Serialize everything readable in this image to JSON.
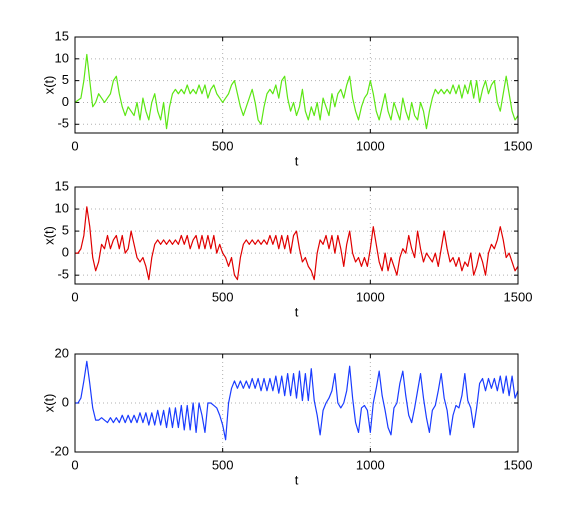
{
  "chart_data": [
    {
      "type": "line",
      "xlabel": "t",
      "ylabel": "x(t)",
      "xlim": [
        0,
        1500
      ],
      "ylim": [
        -7,
        15
      ],
      "xticks": [
        0,
        500,
        1000,
        1500
      ],
      "yticks": [
        -5,
        0,
        5,
        10,
        15
      ],
      "grid": true,
      "x": [
        0,
        10,
        20,
        30,
        40,
        50,
        60,
        70,
        80,
        90,
        100,
        110,
        120,
        130,
        140,
        150,
        160,
        170,
        180,
        190,
        200,
        210,
        220,
        230,
        240,
        250,
        260,
        270,
        280,
        290,
        300,
        310,
        320,
        330,
        340,
        350,
        360,
        370,
        380,
        390,
        400,
        410,
        420,
        430,
        440,
        450,
        460,
        470,
        480,
        490,
        500,
        510,
        520,
        530,
        540,
        550,
        560,
        570,
        580,
        590,
        600,
        610,
        620,
        630,
        640,
        650,
        660,
        670,
        680,
        690,
        700,
        710,
        720,
        730,
        740,
        750,
        760,
        770,
        780,
        790,
        800,
        810,
        820,
        830,
        840,
        850,
        860,
        870,
        880,
        890,
        900,
        910,
        920,
        930,
        940,
        950,
        960,
        970,
        980,
        990,
        1000,
        1010,
        1020,
        1030,
        1040,
        1050,
        1060,
        1070,
        1080,
        1090,
        1100,
        1110,
        1120,
        1130,
        1140,
        1150,
        1160,
        1170,
        1180,
        1190,
        1200,
        1210,
        1220,
        1230,
        1240,
        1250,
        1260,
        1270,
        1280,
        1290,
        1300,
        1310,
        1320,
        1330,
        1340,
        1350,
        1360,
        1370,
        1380,
        1390,
        1400,
        1410,
        1420,
        1430,
        1440,
        1450,
        1460,
        1470,
        1480,
        1490,
        1500
      ],
      "series": [
        {
          "color": "#5ce614",
          "values": [
            0,
            0.5,
            1,
            5,
            11,
            5,
            -1,
            0,
            2,
            1,
            0,
            1,
            2,
            5,
            6,
            2,
            -1,
            -3,
            -1,
            -2,
            -3,
            0,
            -4,
            1,
            -2,
            -4,
            0,
            2,
            -2,
            -4,
            0,
            -6,
            -1,
            2,
            3,
            2,
            3,
            2,
            4,
            2,
            3,
            2,
            4,
            2,
            4,
            1,
            3,
            4,
            2,
            1,
            0,
            1,
            2,
            4,
            5,
            2,
            -1,
            -3,
            -1,
            1,
            3,
            0,
            -4,
            -5,
            -1,
            2,
            3,
            2,
            4,
            1,
            5,
            6,
            1,
            -2,
            0,
            -3,
            -1,
            3,
            -2,
            -4,
            -1,
            -3,
            0,
            -4,
            1,
            -1,
            -3,
            2,
            -1,
            2,
            3,
            1,
            4,
            6,
            1,
            -2,
            -4,
            -1,
            1,
            2,
            5,
            2,
            -2,
            -4,
            -1,
            2,
            -2,
            -4,
            0,
            -2,
            -4,
            1,
            -2,
            -4,
            0,
            -3,
            -4,
            0,
            -2,
            -6,
            -2,
            1,
            3,
            2,
            3,
            2,
            3,
            2,
            4,
            2,
            4,
            1,
            4,
            2,
            5,
            1,
            5,
            0,
            3,
            5,
            2,
            4,
            5,
            0,
            -2,
            2,
            6,
            2,
            -2,
            -4,
            -3
          ]
        }
      ]
    },
    {
      "type": "line",
      "xlabel": "t",
      "ylabel": "x(t)",
      "xlim": [
        0,
        1500
      ],
      "ylim": [
        -7,
        15
      ],
      "xticks": [
        0,
        500,
        1000,
        1500
      ],
      "yticks": [
        -5,
        0,
        5,
        10,
        15
      ],
      "grid": true,
      "x": [
        0,
        10,
        20,
        30,
        40,
        50,
        60,
        70,
        80,
        90,
        100,
        110,
        120,
        130,
        140,
        150,
        160,
        170,
        180,
        190,
        200,
        210,
        220,
        230,
        240,
        250,
        260,
        270,
        280,
        290,
        300,
        310,
        320,
        330,
        340,
        350,
        360,
        370,
        380,
        390,
        400,
        410,
        420,
        430,
        440,
        450,
        460,
        470,
        480,
        490,
        500,
        510,
        520,
        530,
        540,
        550,
        560,
        570,
        580,
        590,
        600,
        610,
        620,
        630,
        640,
        650,
        660,
        670,
        680,
        690,
        700,
        710,
        720,
        730,
        740,
        750,
        760,
        770,
        780,
        790,
        800,
        810,
        820,
        830,
        840,
        850,
        860,
        870,
        880,
        890,
        900,
        910,
        920,
        930,
        940,
        950,
        960,
        970,
        980,
        990,
        1000,
        1010,
        1020,
        1030,
        1040,
        1050,
        1060,
        1070,
        1080,
        1090,
        1100,
        1110,
        1120,
        1130,
        1140,
        1150,
        1160,
        1170,
        1180,
        1190,
        1200,
        1210,
        1220,
        1230,
        1240,
        1250,
        1260,
        1270,
        1280,
        1290,
        1300,
        1310,
        1320,
        1330,
        1340,
        1350,
        1360,
        1370,
        1380,
        1390,
        1400,
        1410,
        1420,
        1430,
        1440,
        1450,
        1460,
        1470,
        1480,
        1490,
        1500
      ],
      "series": [
        {
          "color": "#e00000",
          "values": [
            0,
            0,
            1,
            4,
            10.5,
            6,
            -1,
            -4,
            -2,
            2,
            1,
            4,
            1,
            3,
            4,
            1,
            4,
            0,
            1,
            5,
            2,
            -1,
            -2,
            -1,
            -3,
            -6,
            -1,
            2,
            3,
            2,
            3,
            2,
            3,
            2,
            3,
            2,
            4,
            2,
            4,
            1,
            3,
            4,
            1,
            4,
            1,
            4,
            1,
            4,
            0,
            2,
            0,
            -1,
            -3,
            -1,
            -5,
            -6,
            -1,
            2,
            3,
            2,
            3,
            2,
            3,
            2,
            3,
            2,
            4,
            2,
            4,
            1,
            4,
            1,
            4,
            0,
            4,
            5,
            1,
            -2,
            -1,
            -3,
            -4,
            -6,
            0,
            3,
            2,
            4,
            1,
            4,
            0,
            4,
            1,
            -3,
            2,
            5,
            0,
            -2,
            -1,
            -3,
            -1,
            -3,
            1,
            6,
            2,
            -2,
            -4,
            0,
            -4,
            -1,
            -3,
            -5,
            -1,
            1,
            0,
            4,
            1,
            -1,
            5,
            1,
            -2,
            0,
            -1,
            -2,
            0,
            -3,
            1,
            5,
            1,
            -2,
            -1,
            -3,
            -1,
            -4,
            -2,
            -3,
            0,
            -5,
            -3,
            0,
            -2,
            -5,
            0,
            2,
            1,
            3,
            6,
            3,
            -1,
            0,
            -2,
            -4,
            -3
          ]
        }
      ]
    },
    {
      "type": "line",
      "xlabel": "t",
      "ylabel": "x(t)",
      "xlim": [
        0,
        1500
      ],
      "ylim": [
        -20,
        20
      ],
      "xticks": [
        0,
        500,
        1000,
        1500
      ],
      "yticks": [
        -20,
        0,
        20
      ],
      "grid": true,
      "x": [
        0,
        10,
        20,
        30,
        40,
        50,
        60,
        70,
        80,
        90,
        100,
        110,
        120,
        130,
        140,
        150,
        160,
        170,
        180,
        190,
        200,
        210,
        220,
        230,
        240,
        250,
        260,
        270,
        280,
        290,
        300,
        310,
        320,
        330,
        340,
        350,
        360,
        370,
        380,
        390,
        400,
        410,
        420,
        430,
        440,
        450,
        460,
        470,
        480,
        490,
        500,
        510,
        520,
        530,
        540,
        550,
        560,
        570,
        580,
        590,
        600,
        610,
        620,
        630,
        640,
        650,
        660,
        670,
        680,
        690,
        700,
        710,
        720,
        730,
        740,
        750,
        760,
        770,
        780,
        790,
        800,
        810,
        820,
        830,
        840,
        850,
        860,
        870,
        880,
        890,
        900,
        910,
        920,
        930,
        940,
        950,
        960,
        970,
        980,
        990,
        1000,
        1010,
        1020,
        1030,
        1040,
        1050,
        1060,
        1070,
        1080,
        1090,
        1100,
        1110,
        1120,
        1130,
        1140,
        1150,
        1160,
        1170,
        1180,
        1190,
        1200,
        1210,
        1220,
        1230,
        1240,
        1250,
        1260,
        1270,
        1280,
        1290,
        1300,
        1310,
        1320,
        1330,
        1340,
        1350,
        1360,
        1370,
        1380,
        1390,
        1400,
        1410,
        1420,
        1430,
        1440,
        1450,
        1460,
        1470,
        1480,
        1490,
        1500
      ],
      "series": [
        {
          "color": "#1a3cff",
          "values": [
            0,
            0,
            2,
            9,
            17,
            8,
            -2,
            -7,
            -7,
            -6,
            -7,
            -8,
            -6,
            -8,
            -6,
            -8,
            -5,
            -8,
            -5,
            -8,
            -5,
            -8,
            -4,
            -8,
            -4,
            -9,
            -4,
            -9,
            -3,
            -9,
            -3,
            -10,
            -2,
            -10,
            -2,
            -10,
            -1,
            -11,
            -1,
            -11,
            0,
            -12,
            0,
            -5,
            -12,
            0,
            0,
            -1,
            -2,
            -5,
            -9,
            -15,
            0,
            6,
            9,
            6,
            9,
            6,
            9,
            6,
            10,
            6,
            10,
            5,
            10,
            5,
            10,
            5,
            11,
            4,
            11,
            3,
            12,
            3,
            12,
            2,
            13,
            1,
            12,
            1,
            14,
            1,
            -5,
            -13,
            -3,
            0,
            2,
            5,
            12,
            0,
            -2,
            0,
            5,
            15,
            2,
            -8,
            -12,
            -2,
            -1,
            -3,
            -12,
            0,
            6,
            13,
            3,
            -3,
            -10,
            -13,
            -2,
            0,
            8,
            13,
            3,
            -5,
            -8,
            -2,
            5,
            12,
            2,
            -6,
            -12,
            -3,
            -1,
            5,
            12,
            2,
            -3,
            -13,
            -5,
            -1,
            -2,
            3,
            12,
            1,
            -2,
            -10,
            -2,
            8,
            10,
            5,
            10,
            6,
            10,
            5,
            11,
            4,
            11,
            3,
            11,
            2,
            5
          ]
        }
      ]
    }
  ]
}
